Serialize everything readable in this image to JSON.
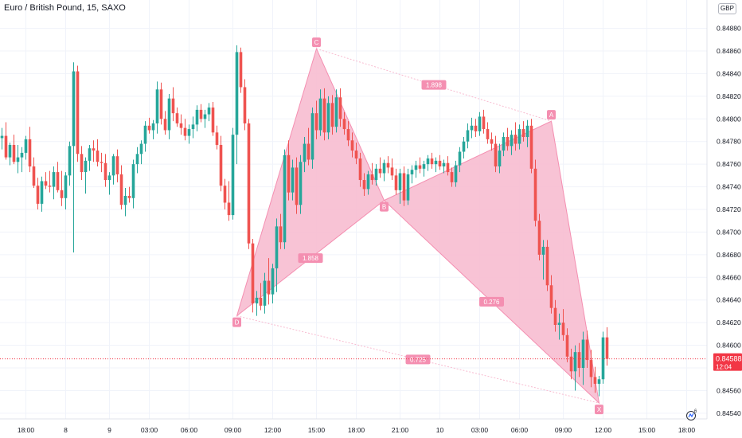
{
  "header": {
    "title": "Euro / British Pound, 15, SAXO",
    "currency": "GBP"
  },
  "price_tag": {
    "value": "0.84588",
    "countdown": "12:04",
    "color": "#f23645"
  },
  "colors": {
    "up": "#26a69a",
    "down": "#ef5350",
    "pattern_fill": "#f7bcd0",
    "pattern_line": "#f48fb1",
    "grid": "#f0f3fa"
  },
  "logo": {
    "name": "tradingview-logo-icon"
  },
  "chart_data": {
    "type": "candlestick",
    "title": "Euro / British Pound, 15, SAXO",
    "symbol": "EURGBP",
    "interval": "15",
    "source": "SAXO",
    "currency": "GBP",
    "ylim": [
      0.84535,
      0.84905
    ],
    "y_ticks": [
      "0.84880",
      "0.84860",
      "0.84840",
      "0.84820",
      "0.84800",
      "0.84780",
      "0.84760",
      "0.84740",
      "0.84720",
      "0.84700",
      "0.84680",
      "0.84660",
      "0.84640",
      "0.84620",
      "0.84600",
      "0.84580",
      "0.84560",
      "0.84540"
    ],
    "x_ticks": [
      "18:00",
      "8",
      "9",
      "03:00",
      "06:00",
      "09:00",
      "12:00",
      "15:00",
      "18:00",
      "21:00",
      "10",
      "03:00",
      "06:00",
      "09:00",
      "12:00",
      "15:00",
      "18:00"
    ],
    "last_price": 0.84588,
    "candles": [
      {
        "o": 0.84783,
        "h": 0.84792,
        "l": 0.84773,
        "c": 0.84785
      },
      {
        "o": 0.84785,
        "h": 0.84797,
        "l": 0.84764,
        "c": 0.84766
      },
      {
        "o": 0.84766,
        "h": 0.84779,
        "l": 0.84759,
        "c": 0.84777
      },
      {
        "o": 0.84777,
        "h": 0.84786,
        "l": 0.8476,
        "c": 0.84762
      },
      {
        "o": 0.84762,
        "h": 0.84777,
        "l": 0.84752,
        "c": 0.84766
      },
      {
        "o": 0.84766,
        "h": 0.84775,
        "l": 0.84753,
        "c": 0.8477
      },
      {
        "o": 0.8477,
        "h": 0.84785,
        "l": 0.84764,
        "c": 0.84782
      },
      {
        "o": 0.84782,
        "h": 0.84793,
        "l": 0.84753,
        "c": 0.84758
      },
      {
        "o": 0.84758,
        "h": 0.84766,
        "l": 0.84739,
        "c": 0.84741
      },
      {
        "o": 0.84741,
        "h": 0.84748,
        "l": 0.8472,
        "c": 0.84725
      },
      {
        "o": 0.84725,
        "h": 0.84749,
        "l": 0.84718,
        "c": 0.84745
      },
      {
        "o": 0.84745,
        "h": 0.84753,
        "l": 0.84738,
        "c": 0.84741
      },
      {
        "o": 0.84741,
        "h": 0.84754,
        "l": 0.84735,
        "c": 0.8474
      },
      {
        "o": 0.8474,
        "h": 0.84758,
        "l": 0.84729,
        "c": 0.84753
      },
      {
        "o": 0.84753,
        "h": 0.84762,
        "l": 0.84735,
        "c": 0.84737
      },
      {
        "o": 0.84737,
        "h": 0.84754,
        "l": 0.84723,
        "c": 0.8473
      },
      {
        "o": 0.8473,
        "h": 0.84753,
        "l": 0.8472,
        "c": 0.8475
      },
      {
        "o": 0.8475,
        "h": 0.8478,
        "l": 0.84741,
        "c": 0.84776
      },
      {
        "o": 0.84776,
        "h": 0.8485,
        "l": 0.84682,
        "c": 0.84842
      },
      {
        "o": 0.84842,
        "h": 0.84847,
        "l": 0.84762,
        "c": 0.84769
      },
      {
        "o": 0.84769,
        "h": 0.84776,
        "l": 0.84746,
        "c": 0.84753
      },
      {
        "o": 0.84753,
        "h": 0.84766,
        "l": 0.84734,
        "c": 0.84763
      },
      {
        "o": 0.84763,
        "h": 0.84777,
        "l": 0.84754,
        "c": 0.84774
      },
      {
        "o": 0.84774,
        "h": 0.84781,
        "l": 0.84762,
        "c": 0.84772
      },
      {
        "o": 0.84772,
        "h": 0.84782,
        "l": 0.84758,
        "c": 0.84762
      },
      {
        "o": 0.84762,
        "h": 0.8477,
        "l": 0.84753,
        "c": 0.84761
      },
      {
        "o": 0.84761,
        "h": 0.84769,
        "l": 0.8474,
        "c": 0.84746
      },
      {
        "o": 0.84746,
        "h": 0.84753,
        "l": 0.84733,
        "c": 0.8475
      },
      {
        "o": 0.8475,
        "h": 0.84769,
        "l": 0.84742,
        "c": 0.84767
      },
      {
        "o": 0.84767,
        "h": 0.84773,
        "l": 0.84744,
        "c": 0.84751
      },
      {
        "o": 0.84751,
        "h": 0.84759,
        "l": 0.8472,
        "c": 0.84724
      },
      {
        "o": 0.84724,
        "h": 0.84739,
        "l": 0.84714,
        "c": 0.84732
      },
      {
        "o": 0.84732,
        "h": 0.8474,
        "l": 0.84726,
        "c": 0.8473
      },
      {
        "o": 0.8473,
        "h": 0.84764,
        "l": 0.84721,
        "c": 0.8476
      },
      {
        "o": 0.8476,
        "h": 0.84775,
        "l": 0.84752,
        "c": 0.84769
      },
      {
        "o": 0.84769,
        "h": 0.84781,
        "l": 0.8476,
        "c": 0.84778
      },
      {
        "o": 0.84778,
        "h": 0.84798,
        "l": 0.84771,
        "c": 0.84794
      },
      {
        "o": 0.84794,
        "h": 0.84801,
        "l": 0.84787,
        "c": 0.8479
      },
      {
        "o": 0.8479,
        "h": 0.84799,
        "l": 0.84782,
        "c": 0.84796
      },
      {
        "o": 0.84796,
        "h": 0.84833,
        "l": 0.84787,
        "c": 0.84826
      },
      {
        "o": 0.84826,
        "h": 0.84832,
        "l": 0.84795,
        "c": 0.848
      },
      {
        "o": 0.848,
        "h": 0.84807,
        "l": 0.84786,
        "c": 0.8479
      },
      {
        "o": 0.8479,
        "h": 0.84822,
        "l": 0.84782,
        "c": 0.84818
      },
      {
        "o": 0.84818,
        "h": 0.84828,
        "l": 0.84798,
        "c": 0.84805
      },
      {
        "o": 0.84805,
        "h": 0.8481,
        "l": 0.84793,
        "c": 0.84796
      },
      {
        "o": 0.84796,
        "h": 0.84804,
        "l": 0.84786,
        "c": 0.84792
      },
      {
        "o": 0.84792,
        "h": 0.848,
        "l": 0.84781,
        "c": 0.84785
      },
      {
        "o": 0.84785,
        "h": 0.84795,
        "l": 0.84778,
        "c": 0.84791
      },
      {
        "o": 0.84791,
        "h": 0.84802,
        "l": 0.84783,
        "c": 0.84795
      },
      {
        "o": 0.84795,
        "h": 0.84812,
        "l": 0.84789,
        "c": 0.84808
      },
      {
        "o": 0.84808,
        "h": 0.84813,
        "l": 0.84797,
        "c": 0.848
      },
      {
        "o": 0.848,
        "h": 0.84808,
        "l": 0.84792,
        "c": 0.84804
      },
      {
        "o": 0.84804,
        "h": 0.84814,
        "l": 0.84798,
        "c": 0.8481
      },
      {
        "o": 0.8481,
        "h": 0.84815,
        "l": 0.84785,
        "c": 0.84788
      },
      {
        "o": 0.84788,
        "h": 0.84794,
        "l": 0.84773,
        "c": 0.84777
      },
      {
        "o": 0.84777,
        "h": 0.84785,
        "l": 0.84736,
        "c": 0.84741
      },
      {
        "o": 0.84741,
        "h": 0.84747,
        "l": 0.8472,
        "c": 0.84726
      },
      {
        "o": 0.84726,
        "h": 0.84745,
        "l": 0.8471,
        "c": 0.84715
      },
      {
        "o": 0.84715,
        "h": 0.84792,
        "l": 0.84711,
        "c": 0.84786
      },
      {
        "o": 0.84786,
        "h": 0.84865,
        "l": 0.8476,
        "c": 0.84859
      },
      {
        "o": 0.84859,
        "h": 0.84863,
        "l": 0.84823,
        "c": 0.84828
      },
      {
        "o": 0.84828,
        "h": 0.84835,
        "l": 0.8479,
        "c": 0.84796
      },
      {
        "o": 0.84796,
        "h": 0.848,
        "l": 0.84685,
        "c": 0.8469
      },
      {
        "o": 0.8469,
        "h": 0.84694,
        "l": 0.84629,
        "c": 0.84637
      },
      {
        "o": 0.84637,
        "h": 0.84648,
        "l": 0.84626,
        "c": 0.84642
      },
      {
        "o": 0.84642,
        "h": 0.84655,
        "l": 0.84631,
        "c": 0.84635
      },
      {
        "o": 0.84635,
        "h": 0.84664,
        "l": 0.84628,
        "c": 0.84657
      },
      {
        "o": 0.84657,
        "h": 0.84677,
        "l": 0.84636,
        "c": 0.84645
      },
      {
        "o": 0.84645,
        "h": 0.84672,
        "l": 0.84637,
        "c": 0.84668
      },
      {
        "o": 0.84668,
        "h": 0.84712,
        "l": 0.84647,
        "c": 0.84705
      },
      {
        "o": 0.84705,
        "h": 0.84716,
        "l": 0.84685,
        "c": 0.84691
      },
      {
        "o": 0.84691,
        "h": 0.84773,
        "l": 0.84685,
        "c": 0.84768
      },
      {
        "o": 0.84768,
        "h": 0.84781,
        "l": 0.84728,
        "c": 0.84735
      },
      {
        "o": 0.84735,
        "h": 0.84764,
        "l": 0.84728,
        "c": 0.84757
      },
      {
        "o": 0.84757,
        "h": 0.84766,
        "l": 0.84716,
        "c": 0.84724
      },
      {
        "o": 0.84724,
        "h": 0.84768,
        "l": 0.84716,
        "c": 0.84762
      },
      {
        "o": 0.84762,
        "h": 0.84784,
        "l": 0.84753,
        "c": 0.84778
      },
      {
        "o": 0.84778,
        "h": 0.84792,
        "l": 0.84759,
        "c": 0.84764
      },
      {
        "o": 0.84764,
        "h": 0.8481,
        "l": 0.84756,
        "c": 0.84805
      },
      {
        "o": 0.84805,
        "h": 0.84816,
        "l": 0.84782,
        "c": 0.8479
      },
      {
        "o": 0.8479,
        "h": 0.84826,
        "l": 0.84785,
        "c": 0.84818
      },
      {
        "o": 0.84818,
        "h": 0.84827,
        "l": 0.84781,
        "c": 0.84788
      },
      {
        "o": 0.84788,
        "h": 0.8482,
        "l": 0.84782,
        "c": 0.84814
      },
      {
        "o": 0.84814,
        "h": 0.84821,
        "l": 0.84786,
        "c": 0.84793
      },
      {
        "o": 0.84793,
        "h": 0.84826,
        "l": 0.84788,
        "c": 0.84819
      },
      {
        "o": 0.84819,
        "h": 0.84827,
        "l": 0.84793,
        "c": 0.848
      },
      {
        "o": 0.848,
        "h": 0.84806,
        "l": 0.84786,
        "c": 0.84791
      },
      {
        "o": 0.84791,
        "h": 0.84798,
        "l": 0.84776,
        "c": 0.84781
      },
      {
        "o": 0.84781,
        "h": 0.84788,
        "l": 0.84766,
        "c": 0.84772
      },
      {
        "o": 0.84772,
        "h": 0.84779,
        "l": 0.8476,
        "c": 0.84765
      },
      {
        "o": 0.84765,
        "h": 0.8477,
        "l": 0.8474,
        "c": 0.84746
      },
      {
        "o": 0.84746,
        "h": 0.84752,
        "l": 0.84732,
        "c": 0.84738
      },
      {
        "o": 0.84738,
        "h": 0.84754,
        "l": 0.84733,
        "c": 0.84751
      },
      {
        "o": 0.84751,
        "h": 0.84761,
        "l": 0.84742,
        "c": 0.84746
      },
      {
        "o": 0.84746,
        "h": 0.8476,
        "l": 0.84741,
        "c": 0.84756
      },
      {
        "o": 0.84756,
        "h": 0.84766,
        "l": 0.84748,
        "c": 0.84752
      },
      {
        "o": 0.84752,
        "h": 0.84764,
        "l": 0.84745,
        "c": 0.84761
      },
      {
        "o": 0.84761,
        "h": 0.84767,
        "l": 0.84752,
        "c": 0.84757
      },
      {
        "o": 0.84757,
        "h": 0.84765,
        "l": 0.84746,
        "c": 0.8475
      },
      {
        "o": 0.8475,
        "h": 0.84756,
        "l": 0.84733,
        "c": 0.84737
      },
      {
        "o": 0.84737,
        "h": 0.84756,
        "l": 0.84725,
        "c": 0.84752
      },
      {
        "o": 0.84752,
        "h": 0.84758,
        "l": 0.84723,
        "c": 0.84728
      },
      {
        "o": 0.84728,
        "h": 0.84756,
        "l": 0.84724,
        "c": 0.84751
      },
      {
        "o": 0.84751,
        "h": 0.84759,
        "l": 0.84743,
        "c": 0.84755
      },
      {
        "o": 0.84755,
        "h": 0.84763,
        "l": 0.84748,
        "c": 0.84759
      },
      {
        "o": 0.84759,
        "h": 0.84766,
        "l": 0.84752,
        "c": 0.84756
      },
      {
        "o": 0.84756,
        "h": 0.84763,
        "l": 0.84749,
        "c": 0.8476
      },
      {
        "o": 0.8476,
        "h": 0.84768,
        "l": 0.84754,
        "c": 0.84765
      },
      {
        "o": 0.84765,
        "h": 0.8477,
        "l": 0.84756,
        "c": 0.8476
      },
      {
        "o": 0.8476,
        "h": 0.84766,
        "l": 0.84753,
        "c": 0.84763
      },
      {
        "o": 0.84763,
        "h": 0.84768,
        "l": 0.84755,
        "c": 0.84758
      },
      {
        "o": 0.84758,
        "h": 0.84764,
        "l": 0.84752,
        "c": 0.84761
      },
      {
        "o": 0.84761,
        "h": 0.84767,
        "l": 0.8475,
        "c": 0.84753
      },
      {
        "o": 0.84753,
        "h": 0.84757,
        "l": 0.8474,
        "c": 0.84744
      },
      {
        "o": 0.84744,
        "h": 0.84763,
        "l": 0.8474,
        "c": 0.84759
      },
      {
        "o": 0.84759,
        "h": 0.84775,
        "l": 0.84753,
        "c": 0.84771
      },
      {
        "o": 0.84771,
        "h": 0.84784,
        "l": 0.84765,
        "c": 0.8478
      },
      {
        "o": 0.8478,
        "h": 0.84796,
        "l": 0.84774,
        "c": 0.8479
      },
      {
        "o": 0.8479,
        "h": 0.84801,
        "l": 0.84783,
        "c": 0.84794
      },
      {
        "o": 0.84794,
        "h": 0.848,
        "l": 0.84784,
        "c": 0.84789
      },
      {
        "o": 0.84789,
        "h": 0.84806,
        "l": 0.84785,
        "c": 0.84802
      },
      {
        "o": 0.84802,
        "h": 0.84808,
        "l": 0.84787,
        "c": 0.84791
      },
      {
        "o": 0.84791,
        "h": 0.84797,
        "l": 0.84778,
        "c": 0.84782
      },
      {
        "o": 0.84782,
        "h": 0.84788,
        "l": 0.84772,
        "c": 0.84778
      },
      {
        "o": 0.84778,
        "h": 0.84785,
        "l": 0.84753,
        "c": 0.84758
      },
      {
        "o": 0.84758,
        "h": 0.84778,
        "l": 0.84752,
        "c": 0.84772
      },
      {
        "o": 0.84772,
        "h": 0.84788,
        "l": 0.84767,
        "c": 0.84784
      },
      {
        "o": 0.84784,
        "h": 0.84792,
        "l": 0.84772,
        "c": 0.84776
      },
      {
        "o": 0.84776,
        "h": 0.8479,
        "l": 0.84768,
        "c": 0.84786
      },
      {
        "o": 0.84786,
        "h": 0.84797,
        "l": 0.84772,
        "c": 0.84778
      },
      {
        "o": 0.84778,
        "h": 0.84795,
        "l": 0.84773,
        "c": 0.84791
      },
      {
        "o": 0.84791,
        "h": 0.84798,
        "l": 0.8478,
        "c": 0.84784
      },
      {
        "o": 0.84784,
        "h": 0.84799,
        "l": 0.84775,
        "c": 0.84794
      },
      {
        "o": 0.84794,
        "h": 0.848,
        "l": 0.84752,
        "c": 0.84756
      },
      {
        "o": 0.84756,
        "h": 0.84764,
        "l": 0.84705,
        "c": 0.8471
      },
      {
        "o": 0.8471,
        "h": 0.84716,
        "l": 0.84675,
        "c": 0.8468
      },
      {
        "o": 0.8468,
        "h": 0.84693,
        "l": 0.84658,
        "c": 0.84687
      },
      {
        "o": 0.84687,
        "h": 0.84693,
        "l": 0.84648,
        "c": 0.84653
      },
      {
        "o": 0.84653,
        "h": 0.84662,
        "l": 0.84628,
        "c": 0.84633
      },
      {
        "o": 0.84633,
        "h": 0.8464,
        "l": 0.84612,
        "c": 0.84618
      },
      {
        "o": 0.84618,
        "h": 0.84628,
        "l": 0.84605,
        "c": 0.8462
      },
      {
        "o": 0.8462,
        "h": 0.84632,
        "l": 0.84604,
        "c": 0.84609
      },
      {
        "o": 0.84609,
        "h": 0.84615,
        "l": 0.84585,
        "c": 0.8459
      },
      {
        "o": 0.8459,
        "h": 0.84597,
        "l": 0.8457,
        "c": 0.84577
      },
      {
        "o": 0.84577,
        "h": 0.846,
        "l": 0.8456,
        "c": 0.84594
      },
      {
        "o": 0.84594,
        "h": 0.84602,
        "l": 0.84572,
        "c": 0.8458
      },
      {
        "o": 0.8458,
        "h": 0.84612,
        "l": 0.84565,
        "c": 0.84605
      },
      {
        "o": 0.84605,
        "h": 0.84613,
        "l": 0.8458,
        "c": 0.84587
      },
      {
        "o": 0.84587,
        "h": 0.84596,
        "l": 0.84563,
        "c": 0.84572
      },
      {
        "o": 0.84572,
        "h": 0.84581,
        "l": 0.84558,
        "c": 0.84566
      },
      {
        "o": 0.84566,
        "h": 0.84573,
        "l": 0.84555,
        "c": 0.8457
      },
      {
        "o": 0.8457,
        "h": 0.84612,
        "l": 0.84566,
        "c": 0.84607
      },
      {
        "o": 0.84607,
        "h": 0.84616,
        "l": 0.84582,
        "c": 0.84588
      }
    ],
    "harmonic_pattern": {
      "points": [
        {
          "label": "X",
          "time_index": 150,
          "price": 0.84549
        },
        {
          "label": "A",
          "time_index": 138,
          "price": 0.84798
        },
        {
          "label": "B",
          "time_index": 96,
          "price": 0.84728
        },
        {
          "label": "C",
          "time_index": 79,
          "price": 0.84862
        },
        {
          "label": "D",
          "time_index": 59,
          "price": 0.84626
        }
      ],
      "ratios": [
        {
          "label": "1.898",
          "between": "C-A"
        },
        {
          "label": "1.858",
          "between": "D-B"
        },
        {
          "label": "0.276",
          "between": "X-B"
        },
        {
          "label": "0.725",
          "between": "D-X"
        }
      ]
    }
  }
}
